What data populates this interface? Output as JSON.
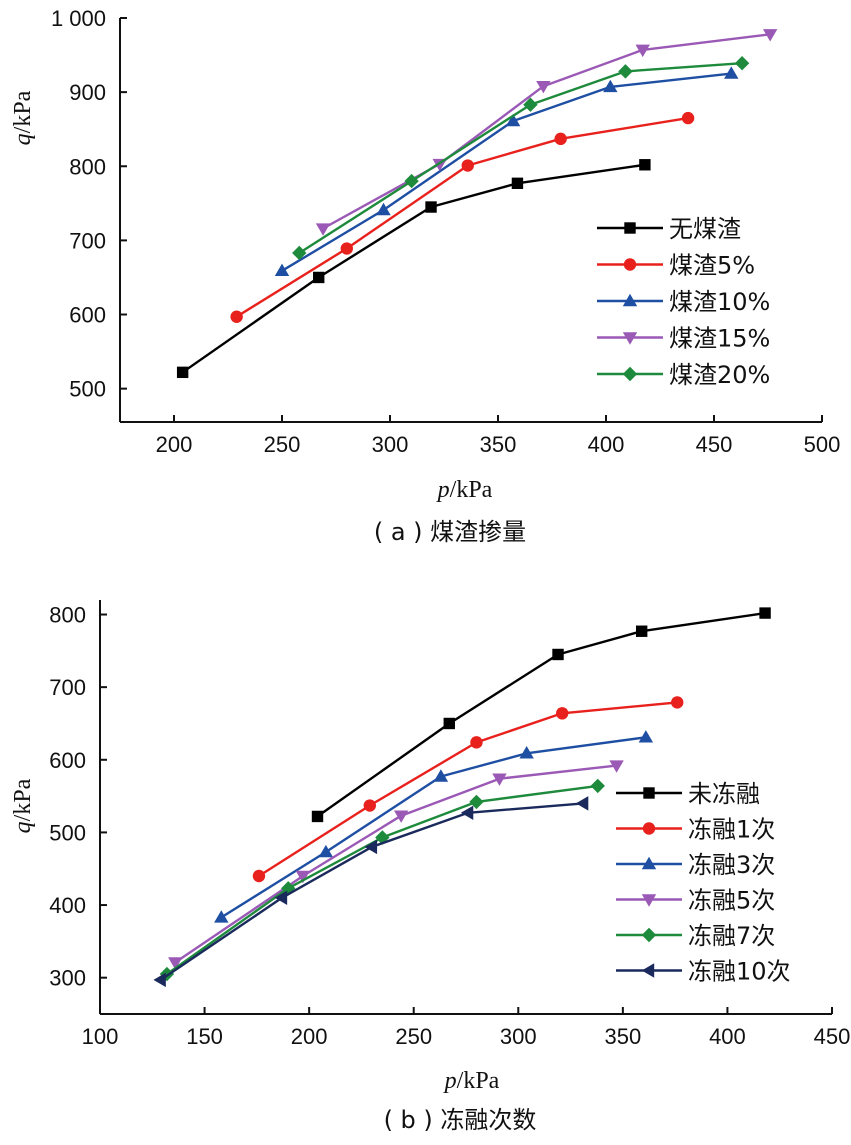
{
  "chart_data": [
    {
      "id": "a",
      "type": "line",
      "caption": "( a ) 煤渣掺量",
      "xlabel_var": "p",
      "xlabel_unit": "/kPa",
      "ylabel_var": "q",
      "ylabel_unit": "/kPa",
      "xlim": [
        175,
        500
      ],
      "ylim": [
        455,
        1000
      ],
      "xticks": [
        200,
        250,
        300,
        350,
        400,
        450,
        500
      ],
      "yticks": [
        500,
        600,
        700,
        800,
        900,
        1000
      ],
      "ytick_labels": [
        "500",
        "600",
        "700",
        "800",
        "900",
        "1 000"
      ],
      "legend_position": "right-middle",
      "series": [
        {
          "name": "无煤渣",
          "color": "#000000",
          "marker": "square",
          "points": [
            [
              204,
              522
            ],
            [
              267,
              650
            ],
            [
              319,
              745
            ],
            [
              359,
              777
            ],
            [
              418,
              802
            ]
          ]
        },
        {
          "name": "煤渣5%",
          "color": "#e8211d",
          "marker": "circle",
          "points": [
            [
              229,
              597
            ],
            [
              280,
              689
            ],
            [
              336,
              801
            ],
            [
              379,
              837
            ],
            [
              438,
              865
            ]
          ]
        },
        {
          "name": "煤渣10%",
          "color": "#1e4fa3",
          "marker": "triangle-up",
          "points": [
            [
              250,
              659
            ],
            [
              297,
              741
            ],
            [
              357,
              861
            ],
            [
              402,
              907
            ],
            [
              458,
              925
            ]
          ]
        },
        {
          "name": "煤渣15%",
          "color": "#9b59b6",
          "marker": "triangle-down",
          "points": [
            [
              269,
              716
            ],
            [
              323,
              803
            ],
            [
              371,
              908
            ],
            [
              417,
              957
            ],
            [
              476,
              978
            ]
          ]
        },
        {
          "name": "煤渣20%",
          "color": "#1e8a3c",
          "marker": "diamond",
          "points": [
            [
              258,
              683
            ],
            [
              310,
              780
            ],
            [
              365,
              883
            ],
            [
              409,
              928
            ],
            [
              463,
              939
            ]
          ]
        }
      ]
    },
    {
      "id": "b",
      "type": "line",
      "caption": "( b ) 冻融次数",
      "xlabel_var": "p",
      "xlabel_unit": "/kPa",
      "ylabel_var": "q",
      "ylabel_unit": "/kPa",
      "xlim": [
        100,
        450
      ],
      "ylim": [
        250,
        820
      ],
      "xticks": [
        100,
        150,
        200,
        250,
        300,
        350,
        400,
        450
      ],
      "yticks": [
        300,
        400,
        500,
        600,
        700,
        800
      ],
      "ytick_labels": [
        "300",
        "400",
        "500",
        "600",
        "700",
        "800"
      ],
      "legend_position": "right-lower",
      "series": [
        {
          "name": "未冻融",
          "color": "#000000",
          "marker": "square",
          "points": [
            [
              204,
              522
            ],
            [
              267,
              650
            ],
            [
              319,
              745
            ],
            [
              359,
              777
            ],
            [
              418,
              802
            ]
          ]
        },
        {
          "name": "冻融1次",
          "color": "#e8211d",
          "marker": "circle",
          "points": [
            [
              176,
              440
            ],
            [
              229,
              537
            ],
            [
              280,
              624
            ],
            [
              321,
              664
            ],
            [
              376,
              679
            ]
          ]
        },
        {
          "name": "冻融3次",
          "color": "#1e4fa3",
          "marker": "triangle-up",
          "points": [
            [
              158,
              383
            ],
            [
              208,
              473
            ],
            [
              263,
              577
            ],
            [
              304,
              609
            ],
            [
              361,
              631
            ]
          ]
        },
        {
          "name": "冻融5次",
          "color": "#9b59b6",
          "marker": "triangle-down",
          "points": [
            [
              136,
              321
            ],
            [
              197,
              440
            ],
            [
              244,
              523
            ],
            [
              291,
              574
            ],
            [
              347,
              592
            ]
          ]
        },
        {
          "name": "冻融7次",
          "color": "#1e8a3c",
          "marker": "diamond",
          "points": [
            [
              132,
              305
            ],
            [
              190,
              423
            ],
            [
              235,
              493
            ],
            [
              280,
              542
            ],
            [
              338,
              564
            ]
          ]
        },
        {
          "name": "冻融10次",
          "color": "#1b2a5c",
          "marker": "triangle-left",
          "points": [
            [
              129,
              297
            ],
            [
              187,
              410
            ],
            [
              230,
              480
            ],
            [
              276,
              527
            ],
            [
              331,
              540
            ]
          ]
        }
      ]
    }
  ]
}
